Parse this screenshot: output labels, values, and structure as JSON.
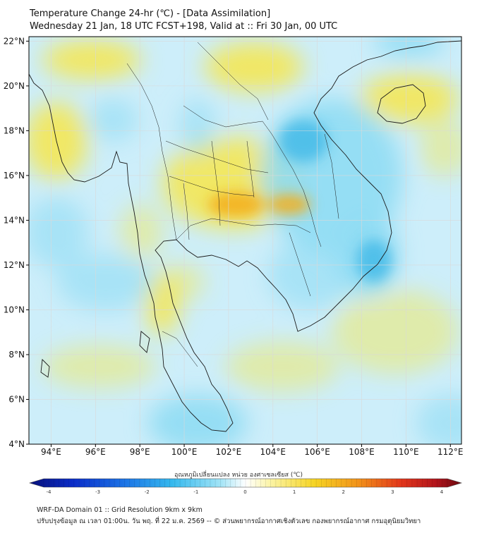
{
  "title": "Temperature Change 24-hr (℃) - [Data Assimilation]",
  "subtitle": "Wednesday 21 Jan, 18 UTC FCST+198, Valid at :: Fri 30 Jan, 00 UTC",
  "lon_ticks": [
    "94°E",
    "96°E",
    "98°E",
    "100°E",
    "102°E",
    "104°E",
    "106°E",
    "108°E",
    "110°E",
    "112°E"
  ],
  "lat_ticks": [
    "22°N",
    "20°N",
    "18°N",
    "16°N",
    "14°N",
    "12°N",
    "10°N",
    "8°N",
    "6°N",
    "4°N"
  ],
  "colorbar": {
    "label": "อุณหภูมิเปลี่ยนแปลง หน่วย องศาเซลเซียส (℃)",
    "ticks": [
      "-4",
      "-3",
      "-2",
      "-1",
      "0",
      "1",
      "2",
      "3",
      "4"
    ]
  },
  "footer": {
    "line1": "WRF-DA Domain 01 :: Grid Resolution 9km x 9km",
    "line2": "ปรับปรุงข้อมูล ณ เวลา 01:00น. วัน พฤ. ที่ 22 ม.ค. 2569 -- © ส่วนพยากรณ์อากาศเชิงตัวเลข กองพยากรณ์อากาศ กรมอุตุนิยมวิทยา"
  },
  "colors": {
    "ocean_base": "#cdeefa",
    "warm": "#f7e64a",
    "warm_strong": "#f3b01e",
    "cool": "#8fdcf3",
    "cool_strong": "#39b6e6",
    "coast": "#1a1a1a",
    "grid": "#d9d9d9"
  }
}
